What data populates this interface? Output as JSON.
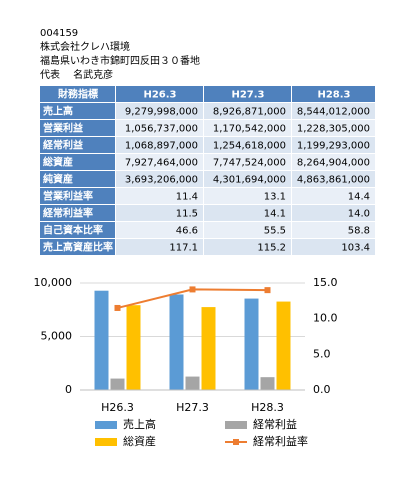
{
  "header": {
    "code": "004159",
    "company": "株式会社クレハ環境",
    "address": "福島県いわき市錦町四反田３０番地",
    "representative": "代表　 名武克彦"
  },
  "table": {
    "columns": [
      "財務指標",
      "H26.3",
      "H27.3",
      "H28.3"
    ],
    "rows": [
      [
        "売上高",
        "9,279,998,000",
        "8,926,871,000",
        "8,544,012,000"
      ],
      [
        "営業利益",
        "1,056,737,000",
        "1,170,542,000",
        "1,228,305,000"
      ],
      [
        "経常利益",
        "1,068,897,000",
        "1,254,618,000",
        "1,199,293,000"
      ],
      [
        "総資産",
        "7,927,464,000",
        "7,747,524,000",
        "8,264,904,000"
      ],
      [
        "純資産",
        "3,693,206,000",
        "4,301,694,000",
        "4,863,861,000"
      ],
      [
        "営業利益率",
        "11.4",
        "13.1",
        "14.4"
      ],
      [
        "経常利益率",
        "11.5",
        "14.1",
        "14.0"
      ],
      [
        "自己資本比率",
        "46.6",
        "55.5",
        "58.8"
      ],
      [
        "売上高資産比率",
        "117.1",
        "115.2",
        "103.4"
      ]
    ]
  },
  "chart_data": {
    "type": "bar",
    "categories": [
      "H26.3",
      "H27.3",
      "H28.3"
    ],
    "series": [
      {
        "name": "売上高",
        "color": "#5b9bd5",
        "values": [
          9280,
          8927,
          8544
        ]
      },
      {
        "name": "経常利益",
        "color": "#a5a5a5",
        "values": [
          1069,
          1255,
          1199
        ]
      },
      {
        "name": "総資産",
        "color": "#ffc000",
        "values": [
          7927,
          7748,
          8265
        ]
      },
      {
        "name": "経常利益率",
        "color": "#ed7d31",
        "type": "line",
        "axis": "y2",
        "values": [
          11.5,
          14.1,
          14.0
        ]
      }
    ],
    "ylim": [
      0,
      10000
    ],
    "yticks": [
      0,
      {
        "value": 5000,
        "label": "5,000"
      },
      {
        "value": 10000,
        "label": "10,000"
      }
    ],
    "y2lim": [
      0,
      15
    ],
    "y2ticks": [
      {
        "value": 0,
        "label": "0.0"
      },
      {
        "value": 5,
        "label": "5.0"
      },
      {
        "value": 10,
        "label": "10.0"
      },
      {
        "value": 15,
        "label": "15.0"
      }
    ],
    "grid": true
  }
}
